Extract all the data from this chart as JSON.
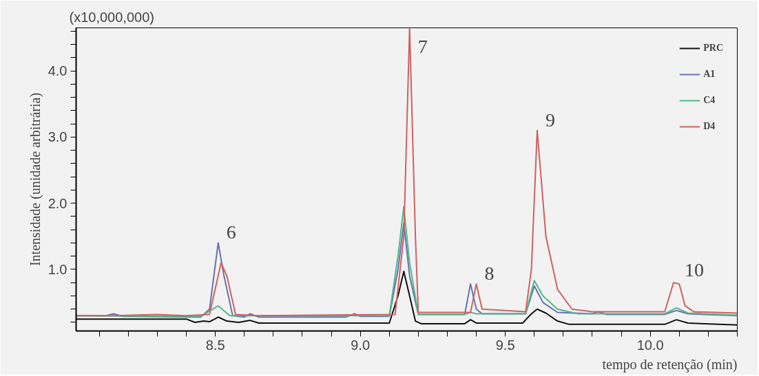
{
  "chart_data": {
    "type": "line",
    "xlabel": "tempo de retenção (min)",
    "ylabel": "Intensidade (unidade arbitrária)",
    "xlim": [
      8.02,
      10.3
    ],
    "ylim": [
      0.07,
      4.65
    ],
    "xticks": [
      {
        "value": 8.1,
        "label": null
      },
      {
        "value": 8.2,
        "label": null
      },
      {
        "value": 8.3,
        "label": null
      },
      {
        "value": 8.4,
        "label": null
      },
      {
        "value": 8.5,
        "label": "8.5"
      },
      {
        "value": 8.6,
        "label": null
      },
      {
        "value": 8.7,
        "label": null
      },
      {
        "value": 8.8,
        "label": null
      },
      {
        "value": 8.9,
        "label": null
      },
      {
        "value": 9.0,
        "label": "9.0"
      },
      {
        "value": 9.1,
        "label": null
      },
      {
        "value": 9.2,
        "label": null
      },
      {
        "value": 9.3,
        "label": null
      },
      {
        "value": 9.4,
        "label": null
      },
      {
        "value": 9.5,
        "label": "9.5"
      },
      {
        "value": 9.6,
        "label": null
      },
      {
        "value": 9.7,
        "label": null
      },
      {
        "value": 9.8,
        "label": null
      },
      {
        "value": 9.9,
        "label": null
      },
      {
        "value": 10.0,
        "label": "10.0"
      },
      {
        "value": 10.1,
        "label": null
      },
      {
        "value": 10.2,
        "label": null
      },
      {
        "value": 10.3,
        "label": null
      }
    ],
    "yticks": [
      {
        "value": 0.2,
        "label": null
      },
      {
        "value": 0.4,
        "label": null
      },
      {
        "value": 0.6,
        "label": null
      },
      {
        "value": 0.8,
        "label": null
      },
      {
        "value": 1.0,
        "label": "1.0"
      },
      {
        "value": 1.2,
        "label": null
      },
      {
        "value": 1.4,
        "label": null
      },
      {
        "value": 1.6,
        "label": null
      },
      {
        "value": 1.8,
        "label": null
      },
      {
        "value": 2.0,
        "label": "2.0"
      },
      {
        "value": 2.2,
        "label": null
      },
      {
        "value": 2.4,
        "label": null
      },
      {
        "value": 2.6,
        "label": null
      },
      {
        "value": 2.8,
        "label": null
      },
      {
        "value": 3.0,
        "label": "3.0"
      },
      {
        "value": 3.2,
        "label": null
      },
      {
        "value": 3.4,
        "label": null
      },
      {
        "value": 3.6,
        "label": null
      },
      {
        "value": 3.8,
        "label": null
      },
      {
        "value": 4.0,
        "label": "4.0"
      },
      {
        "value": 4.2,
        "label": null
      },
      {
        "value": 4.4,
        "label": null
      },
      {
        "value": 4.6,
        "label": null
      }
    ],
    "grid": false,
    "legend": "top right",
    "marker": "none",
    "line_style": "solid",
    "series": [
      {
        "name": "PRC",
        "color": "#111111",
        "x": [
          8.02,
          8.4,
          8.43,
          8.46,
          8.48,
          8.51,
          8.54,
          8.58,
          8.62,
          8.65,
          9.1,
          9.13,
          9.15,
          9.17,
          9.19,
          9.21,
          9.36,
          9.38,
          9.4,
          9.56,
          9.59,
          9.61,
          9.64,
          9.68,
          9.72,
          10.05,
          10.09,
          10.13,
          10.3
        ],
        "values": [
          0.25,
          0.25,
          0.2,
          0.22,
          0.21,
          0.28,
          0.22,
          0.2,
          0.23,
          0.19,
          0.19,
          0.6,
          0.97,
          0.6,
          0.22,
          0.18,
          0.18,
          0.24,
          0.19,
          0.19,
          0.33,
          0.4,
          0.34,
          0.22,
          0.17,
          0.17,
          0.24,
          0.19,
          0.16
        ]
      },
      {
        "name": "A1",
        "color": "#6670b0",
        "x": [
          8.02,
          8.12,
          8.15,
          8.18,
          8.45,
          8.48,
          8.51,
          8.53,
          8.56,
          8.6,
          8.62,
          8.65,
          8.95,
          8.98,
          9.0,
          9.1,
          9.13,
          9.15,
          9.17,
          9.2,
          9.36,
          9.38,
          9.4,
          9.42,
          9.57,
          9.6,
          9.63,
          9.68,
          9.8,
          9.82,
          9.85,
          10.05,
          10.09,
          10.13,
          10.3
        ],
        "values": [
          0.3,
          0.3,
          0.33,
          0.29,
          0.28,
          0.4,
          1.4,
          0.9,
          0.3,
          0.28,
          0.33,
          0.28,
          0.28,
          0.33,
          0.29,
          0.29,
          1.0,
          1.7,
          0.9,
          0.32,
          0.32,
          0.78,
          0.4,
          0.33,
          0.33,
          0.75,
          0.5,
          0.35,
          0.33,
          0.36,
          0.32,
          0.32,
          0.38,
          0.33,
          0.3
        ]
      },
      {
        "name": "C4",
        "color": "#50b888",
        "x": [
          8.02,
          8.45,
          8.51,
          8.55,
          9.1,
          9.13,
          9.15,
          9.17,
          9.2,
          9.36,
          9.38,
          9.4,
          9.57,
          9.6,
          9.63,
          9.68,
          9.75,
          10.05,
          10.09,
          10.13,
          10.3
        ],
        "values": [
          0.3,
          0.29,
          0.45,
          0.3,
          0.3,
          1.2,
          1.95,
          1.1,
          0.32,
          0.32,
          0.35,
          0.33,
          0.33,
          0.83,
          0.6,
          0.4,
          0.33,
          0.33,
          0.42,
          0.34,
          0.31
        ]
      },
      {
        "name": "D4",
        "color": "#d06060",
        "x": [
          8.02,
          8.15,
          8.3,
          8.4,
          8.48,
          8.52,
          8.54,
          8.57,
          8.65,
          9.12,
          9.15,
          9.17,
          9.19,
          9.2,
          9.38,
          9.4,
          9.42,
          9.57,
          9.59,
          9.61,
          9.64,
          9.68,
          9.73,
          9.8,
          10.05,
          10.08,
          10.1,
          10.12,
          10.15,
          10.3
        ],
        "values": [
          0.3,
          0.3,
          0.32,
          0.3,
          0.32,
          1.1,
          0.9,
          0.32,
          0.3,
          0.32,
          1.5,
          4.65,
          1.5,
          0.35,
          0.35,
          0.78,
          0.4,
          0.36,
          1.0,
          3.1,
          1.5,
          0.7,
          0.4,
          0.36,
          0.36,
          0.8,
          0.78,
          0.45,
          0.36,
          0.34
        ]
      }
    ],
    "annotations": [
      "(x10,000,000)",
      {
        "text": "6",
        "x": 8.51,
        "y": 1.4
      },
      {
        "text": "7",
        "x": 9.17,
        "y": 4.65
      },
      {
        "text": "8",
        "x": 9.4,
        "y": 0.78
      },
      {
        "text": "9",
        "x": 9.61,
        "y": 3.1
      },
      {
        "text": "10",
        "x": 10.09,
        "y": 0.83
      }
    ]
  }
}
